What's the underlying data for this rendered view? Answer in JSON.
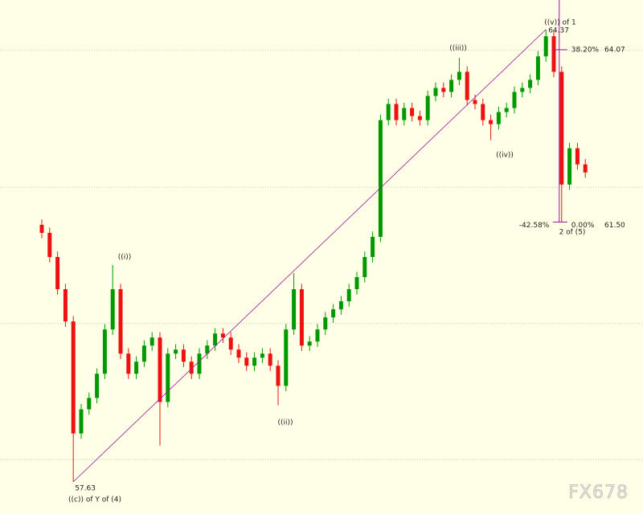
{
  "chart_data": {
    "type": "candlestick",
    "open": [
      61.46,
      61.34,
      60.98,
      60.5,
      60.02,
      58.35,
      58.71,
      58.88,
      59.24,
      59.9,
      60.5,
      59.54,
      59.24,
      59.42,
      59.66,
      59.78,
      58.82,
      59.54,
      59.6,
      59.42,
      59.24,
      59.54,
      59.66,
      59.84,
      59.78,
      59.6,
      59.48,
      59.36,
      59.48,
      59.54,
      59.36,
      59.06,
      59.9,
      60.5,
      59.66,
      59.72,
      59.9,
      60.08,
      60.2,
      60.32,
      60.5,
      60.68,
      60.98,
      61.28,
      63.02,
      63.26,
      63.02,
      63.2,
      63.08,
      63.02,
      63.38,
      63.5,
      63.44,
      63.62,
      63.74,
      63.32,
      63.26,
      63.02,
      62.96,
      63.14,
      63.2,
      63.44,
      63.5,
      63.62,
      63.97,
      64.27,
      63.74,
      62.06,
      62.6,
      62.36
    ],
    "high": [
      61.54,
      61.42,
      61.06,
      60.58,
      60.1,
      58.79,
      58.96,
      59.32,
      59.98,
      60.86,
      60.58,
      59.62,
      59.5,
      59.74,
      59.86,
      59.86,
      59.62,
      59.68,
      59.68,
      59.5,
      59.62,
      59.74,
      59.92,
      59.92,
      59.86,
      59.68,
      59.56,
      59.56,
      59.62,
      59.62,
      59.44,
      59.98,
      60.74,
      60.58,
      59.8,
      59.98,
      60.16,
      60.28,
      60.4,
      60.58,
      60.76,
      61.06,
      61.36,
      63.1,
      63.34,
      63.34,
      63.28,
      63.28,
      63.16,
      63.46,
      63.58,
      63.58,
      63.7,
      63.95,
      63.82,
      63.4,
      63.34,
      63.1,
      63.22,
      63.28,
      63.52,
      63.58,
      63.7,
      64.05,
      64.37,
      64.35,
      63.82,
      62.68,
      62.68,
      62.44
    ],
    "low": [
      61.26,
      60.9,
      60.42,
      59.94,
      57.63,
      58.27,
      58.63,
      58.8,
      59.16,
      59.82,
      59.46,
      59.16,
      59.16,
      59.34,
      59.58,
      58.17,
      58.74,
      59.46,
      59.34,
      59.16,
      59.16,
      59.46,
      59.58,
      59.7,
      59.52,
      59.4,
      59.28,
      59.28,
      59.4,
      59.28,
      58.77,
      58.98,
      59.82,
      59.58,
      59.58,
      59.64,
      59.82,
      60.0,
      60.12,
      60.24,
      60.42,
      60.6,
      60.9,
      61.2,
      62.94,
      62.94,
      62.94,
      63.0,
      62.94,
      62.94,
      63.3,
      63.36,
      63.36,
      63.54,
      63.24,
      63.18,
      62.94,
      62.72,
      62.88,
      63.06,
      63.12,
      63.36,
      63.42,
      63.54,
      63.89,
      63.66,
      61.5,
      61.98,
      62.28,
      62.16
    ],
    "close": [
      61.34,
      60.98,
      60.5,
      60.02,
      58.35,
      58.71,
      58.88,
      59.24,
      59.9,
      60.5,
      59.54,
      59.24,
      59.42,
      59.66,
      59.78,
      58.82,
      59.54,
      59.6,
      59.42,
      59.24,
      59.54,
      59.66,
      59.84,
      59.78,
      59.6,
      59.48,
      59.36,
      59.48,
      59.54,
      59.36,
      59.06,
      59.9,
      60.5,
      59.66,
      59.72,
      59.9,
      60.08,
      60.2,
      60.32,
      60.5,
      60.68,
      60.98,
      61.28,
      63.02,
      63.26,
      63.02,
      63.2,
      63.08,
      63.02,
      63.38,
      63.5,
      63.44,
      63.62,
      63.74,
      63.32,
      63.26,
      63.02,
      62.96,
      63.14,
      63.2,
      63.44,
      63.5,
      63.62,
      63.97,
      64.27,
      63.74,
      62.06,
      62.6,
      62.36,
      62.24
    ],
    "up_color": "#009900",
    "down_color": "#ee1111",
    "ylim": [
      57.15,
      64.81
    ],
    "grid": true,
    "grid_levels": [
      64.06,
      62.02,
      59.99,
      57.96
    ],
    "annotations": [
      "((c)) of Y of (4)",
      "((i))",
      "((ii))",
      "((iii))",
      "((iv))",
      "((v)) of 1",
      "2 of (5)"
    ],
    "fib_levels": [
      {
        "value": 64.07,
        "label": "64.07",
        "pct": "38.20%"
      },
      {
        "value": 61.5,
        "label": "61.50",
        "pct": "0.00%"
      }
    ],
    "fib_extension": "-42.58%",
    "line_color": "#9b1a9b",
    "watermark": "FX678"
  }
}
